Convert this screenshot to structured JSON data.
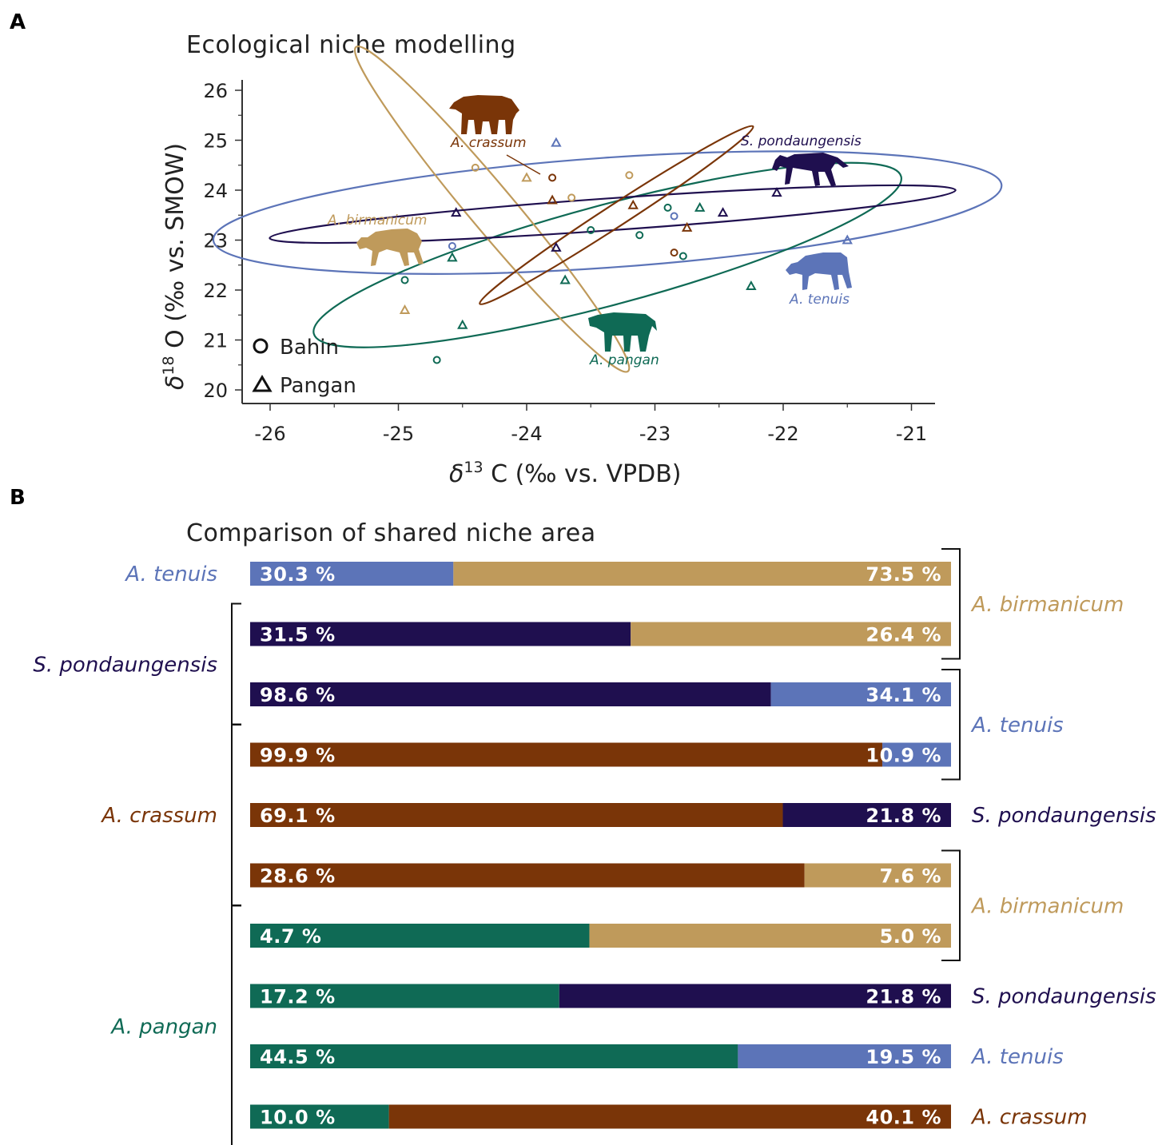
{
  "colors": {
    "birmanicum": "#bf9a5b",
    "crassum": "#7a3508",
    "pondaungensis": "#1f0f4f",
    "tenuis": "#5c74b8",
    "pangan": "#0f6a55",
    "axis": "#333333"
  },
  "panel_a": {
    "letter": "A",
    "title": "Ecological niche modelling",
    "legend": {
      "bahin": "Bahin",
      "pangan": "Pangan"
    },
    "species_labels": {
      "crassum": "A. crassum",
      "pondaungensis": "S. pondaungensis",
      "birmanicum": "A. birmanicum",
      "tenuis": "A. tenuis",
      "pangan": "A. pangan"
    }
  },
  "panel_b": {
    "letter": "B",
    "title": "Comparison of shared niche area"
  },
  "chart_data": [
    {
      "type": "scatter",
      "title": "Ecological niche modelling",
      "xlabel_prefix": "δ",
      "xlabel_sup": "13",
      "xlabel_suffix": " C (‰ vs. VPDB)",
      "ylabel_prefix": "δ",
      "ylabel_sup": "18",
      "ylabel_suffix": " O (‰ vs. SMOW)",
      "xlim": [
        -26.2,
        -20.8
      ],
      "ylim": [
        19.8,
        26.2
      ],
      "xticks": [
        -26,
        -25,
        -24,
        -23,
        -22,
        -21
      ],
      "yticks": [
        20,
        21,
        22,
        23,
        24,
        25,
        26
      ],
      "x_tick_labels": [
        "-26",
        "-25",
        "-24",
        "-23",
        "-22",
        "-21"
      ],
      "y_tick_labels": [
        "20",
        "21",
        "22",
        "23",
        "24",
        "25",
        "26"
      ],
      "ellipses": [
        {
          "species": "tenuis",
          "cx": -23.37,
          "cy": 23.55,
          "rx": 3.08,
          "ry": 1.1,
          "angle_deg": -4
        },
        {
          "species": "pangan",
          "cx": -23.37,
          "cy": 22.7,
          "rx": 2.37,
          "ry": 1.0,
          "angle_deg": -15
        },
        {
          "species": "birmanicum",
          "cx": -24.27,
          "cy": 23.62,
          "rx": 1.65,
          "ry": 0.45,
          "angle_deg": 50
        },
        {
          "species": "pondaungensis",
          "cx": -23.33,
          "cy": 23.52,
          "rx": 2.68,
          "ry": 0.32,
          "angle_deg": -4
        },
        {
          "species": "crassum",
          "cx": -23.3,
          "cy": 23.5,
          "rx": 1.27,
          "ry": 0.22,
          "angle_deg": -33
        }
      ],
      "series": [
        {
          "name": "A. birmanicum",
          "species": "birmanicum",
          "marker": "circle",
          "points": [
            [
              -24.4,
              24.45
            ],
            [
              -23.65,
              23.85
            ],
            [
              -23.2,
              24.3
            ]
          ]
        },
        {
          "name": "A. birmanicum",
          "species": "birmanicum",
          "marker": "triangle",
          "points": [
            [
              -24.0,
              24.25
            ],
            [
              -24.95,
              21.6
            ]
          ]
        },
        {
          "name": "A. crassum",
          "species": "crassum",
          "marker": "circle",
          "points": [
            [
              -23.8,
              24.25
            ],
            [
              -22.85,
              22.75
            ]
          ]
        },
        {
          "name": "A. crassum",
          "species": "crassum",
          "marker": "triangle",
          "points": [
            [
              -23.8,
              23.8
            ],
            [
              -23.17,
              23.7
            ],
            [
              -22.75,
              23.25
            ]
          ]
        },
        {
          "name": "S. pondaungensis",
          "species": "pondaungensis",
          "marker": "triangle",
          "points": [
            [
              -24.55,
              23.55
            ],
            [
              -23.77,
              22.85
            ],
            [
              -22.47,
              23.55
            ],
            [
              -22.05,
              23.95
            ]
          ]
        },
        {
          "name": "A. tenuis",
          "species": "tenuis",
          "marker": "circle",
          "points": [
            [
              -24.58,
              22.88
            ],
            [
              -22.85,
              23.48
            ]
          ]
        },
        {
          "name": "A. tenuis",
          "species": "tenuis",
          "marker": "triangle",
          "points": [
            [
              -23.77,
              24.95
            ],
            [
              -21.5,
              23.0
            ]
          ]
        },
        {
          "name": "A. pangan",
          "species": "pangan",
          "marker": "circle",
          "points": [
            [
              -24.95,
              22.2
            ],
            [
              -24.7,
              20.6
            ],
            [
              -23.5,
              23.2
            ],
            [
              -23.12,
              23.1
            ],
            [
              -22.9,
              23.65
            ],
            [
              -22.78,
              22.68
            ]
          ]
        },
        {
          "name": "A. pangan",
          "species": "pangan",
          "marker": "triangle",
          "points": [
            [
              -24.58,
              22.65
            ],
            [
              -24.5,
              21.3
            ],
            [
              -23.7,
              22.2
            ],
            [
              -22.65,
              23.65
            ],
            [
              -22.25,
              22.08
            ]
          ]
        }
      ]
    },
    {
      "type": "bar",
      "orientation": "horizontal-stacked-comparison",
      "title": "Comparison of shared niche area",
      "rows": [
        {
          "left_species": "tenuis",
          "right_species": "birmanicum",
          "left_label": "30.3 %",
          "right_label": "73.5 %",
          "split_fraction": 0.29
        },
        {
          "left_species": "pondaungensis",
          "right_species": "birmanicum",
          "left_label": "31.5 %",
          "right_label": "26.4 %",
          "split_fraction": 0.543
        },
        {
          "left_species": "pondaungensis",
          "right_species": "tenuis",
          "left_label": "98.6 %",
          "right_label": "34.1 %",
          "split_fraction": 0.743
        },
        {
          "left_species": "crassum",
          "right_species": "tenuis",
          "left_label": "99.9 %",
          "right_label": "10.9 %",
          "split_fraction": 0.902
        },
        {
          "left_species": "crassum",
          "right_species": "pondaungensis",
          "left_label": "69.1 %",
          "right_label": "21.8 %",
          "split_fraction": 0.76
        },
        {
          "left_species": "crassum",
          "right_species": "birmanicum",
          "left_label": "28.6 %",
          "right_label": "7.6 %",
          "split_fraction": 0.791
        },
        {
          "left_species": "pangan",
          "right_species": "birmanicum",
          "left_label": "4.7 %",
          "right_label": "5.0 %",
          "split_fraction": 0.484
        },
        {
          "left_species": "pangan",
          "right_species": "pondaungensis",
          "left_label": "17.2 %",
          "right_label": "21.8 %",
          "split_fraction": 0.441
        },
        {
          "left_species": "pangan",
          "right_species": "tenuis",
          "left_label": "44.5 %",
          "right_label": "19.5 %",
          "split_fraction": 0.696
        },
        {
          "left_species": "pangan",
          "right_species": "crassum",
          "left_label": "10.0 %",
          "right_label": "40.1 %",
          "split_fraction": 0.198
        }
      ],
      "left_groups": [
        {
          "label": "A. tenuis",
          "species": "tenuis",
          "rows": [
            0,
            0
          ],
          "bracket": false
        },
        {
          "label": "S. pondaungensis",
          "species": "pondaungensis",
          "rows": [
            1,
            2
          ],
          "bracket": true
        },
        {
          "label": "A. crassum",
          "species": "crassum",
          "rows": [
            3,
            5
          ],
          "bracket": true
        },
        {
          "label": "A. pangan",
          "species": "pangan",
          "rows": [
            6,
            9
          ],
          "bracket": true
        }
      ],
      "right_groups": [
        {
          "label": "A. birmanicum",
          "species": "birmanicum",
          "rows": [
            0,
            1
          ],
          "bracket": true
        },
        {
          "label": "A. tenuis",
          "species": "tenuis",
          "rows": [
            2,
            3
          ],
          "bracket": true
        },
        {
          "label": "S. pondaungensis",
          "species": "pondaungensis",
          "rows": [
            4,
            4
          ],
          "bracket": false
        },
        {
          "label": "A. birmanicum",
          "species": "birmanicum",
          "rows": [
            5,
            6
          ],
          "bracket": true
        },
        {
          "label": "S. pondaungensis",
          "species": "pondaungensis",
          "rows": [
            7,
            7
          ],
          "bracket": false
        },
        {
          "label": "A. tenuis",
          "species": "tenuis",
          "rows": [
            8,
            8
          ],
          "bracket": false
        },
        {
          "label": "A. crassum",
          "species": "crassum",
          "rows": [
            9,
            9
          ],
          "bracket": false
        }
      ]
    }
  ]
}
